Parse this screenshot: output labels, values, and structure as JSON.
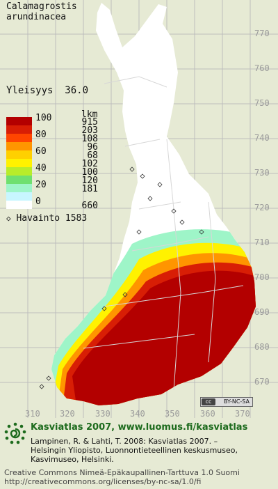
{
  "species": {
    "genus": "Calamagrostis",
    "epithet": "arundinacea"
  },
  "frequency": {
    "label": "Yleisyys",
    "value": "36.0"
  },
  "legend": {
    "count_header": "lkm",
    "classes": [
      {
        "label": "100",
        "count": "915",
        "color": "#b30000"
      },
      {
        "label": "",
        "count": "203",
        "color": "#d81e05"
      },
      {
        "label": "80",
        "count": "108",
        "color": "#ff4500"
      },
      {
        "label": "",
        "count": "96",
        "color": "#ff9500"
      },
      {
        "label": "60",
        "count": "68",
        "color": "#ffd000"
      },
      {
        "label": "",
        "count": "102",
        "color": "#fff200"
      },
      {
        "label": "40",
        "count": "100",
        "color": "#b8ec2a"
      },
      {
        "label": "",
        "count": "120",
        "color": "#6fe06f"
      },
      {
        "label": "20",
        "count": "181",
        "color": "#9ef5c8"
      },
      {
        "label": "",
        "count": "",
        "color": "#c8f6ff"
      },
      {
        "label": "0",
        "count": "660",
        "color": "#ffffff"
      }
    ]
  },
  "observations": {
    "symbol": "◇",
    "label": "Havainto",
    "count": "1583"
  },
  "axes": {
    "y_ticks": [
      "770",
      "760",
      "750",
      "740",
      "730",
      "720",
      "710",
      "700",
      "690",
      "680",
      "670"
    ],
    "x_ticks": [
      "310",
      "320",
      "330",
      "340",
      "350",
      "360",
      "370"
    ]
  },
  "cc_badge": "BY-NC-SA",
  "footer": {
    "title": "Kasviatlas 2007, www.luomus.fi/kasviatlas",
    "citation_lines": [
      "Lampinen, R. & Lahti, T. 2008: Kasviatlas 2007. –",
      "Helsingin Yliopisto, Luonnontieteellinen keskusmuseo,",
      "Kasvimuseo, Helsinki."
    ],
    "license_lines": [
      "Creative Commons Nimeä-Epäkaupallinen-Tarttuva 1.0 Suomi",
      "http://creativecommons.org/licenses/by-nc-sa/1.0/fi"
    ]
  },
  "colors": {
    "background": "#e6ead4",
    "grid": "#bdbdbd",
    "land": "#ffffff",
    "footer_green": "#1d6b1d"
  }
}
